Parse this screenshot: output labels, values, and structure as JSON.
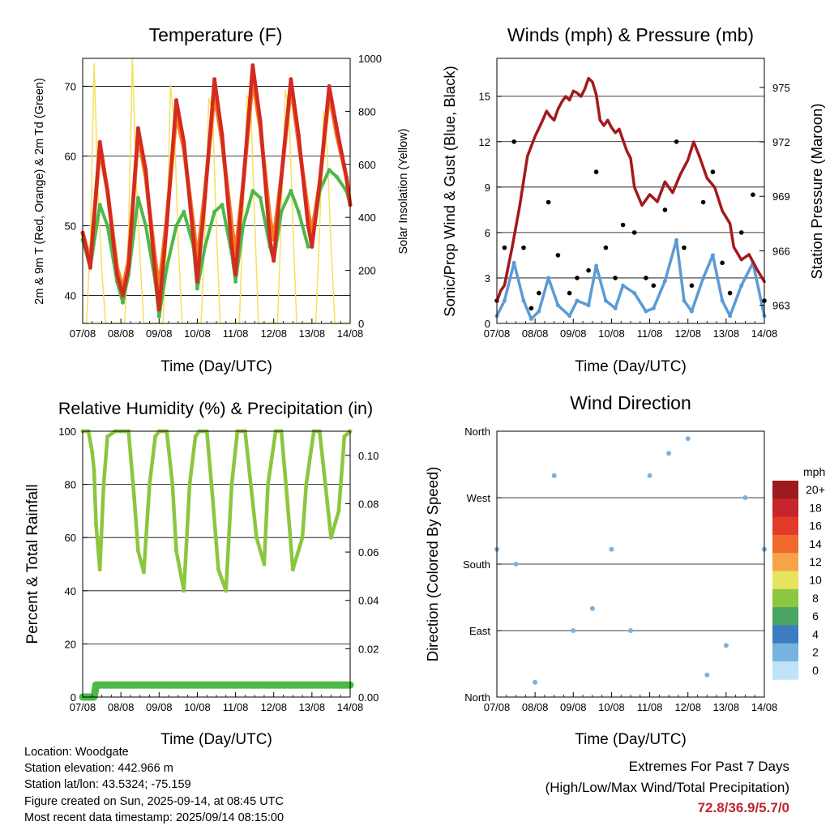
{
  "panels": {
    "temperature": {
      "title": "Temperature (F)",
      "xlabel": "Time (Day/UTC)",
      "ylabel_left": "2m & 9m T (Red, Orange) & 2m Td (Green)",
      "ylabel_right": "Solar Insolation (Yellow)"
    },
    "wind": {
      "title": "Winds (mph) & Pressure (mb)",
      "xlabel": "Time (Day/UTC)",
      "ylabel_left": "Sonic/Prop Wind & Gust (Blue, Black)",
      "ylabel_right": "Station Pressure (Maroon)"
    },
    "humidity": {
      "title": "Relative Humidity (%) & Precipitation (in)",
      "xlabel": "Time (Day/UTC)",
      "ylabel_left": "Percent & Total Rainfall"
    },
    "direction": {
      "title": "Wind Direction",
      "xlabel": "Time (Day/UTC)",
      "ylabel_left": "Direction (Colored By Speed)",
      "legend_unit": "mph"
    }
  },
  "info": {
    "location": "Location: Woodgate",
    "elevation": "Station elevation: 442.966 m",
    "latlon": "Station lat/lon: 43.5324; -75.159",
    "created": "Figure created on Sun, 2025-09-14, at 08:45 UTC",
    "recent": "Most recent data timestamp: 2025/09/14 08:15:00"
  },
  "extremes": {
    "line1": "Extremes For Past 7 Days",
    "line2": "(High/Low/Max Wind/Total Precipitation)",
    "values": "72.8/36.9/5.7/0"
  },
  "colors": {
    "temp_2m": "#d42a20",
    "temp_9m": "#f47b20",
    "dewpoint": "#4db848",
    "insolation": "#f6e05a",
    "wind_sonic": "#5b9bd5",
    "gust": "#000000",
    "pressure": "#a3191c",
    "humidity": "#8cc63f",
    "precip": "#4db848",
    "extremes": "#c0272d"
  },
  "chart_data": [
    {
      "id": "temperature",
      "type": "line",
      "title": "Temperature (F)",
      "xlabel": "Time (Day/UTC)",
      "ylabel": "2m & 9m T (Red, Orange) & 2m Td (Green)",
      "ylabel_right": "Solar Insolation (Yellow)",
      "x_ticks": [
        "07/08",
        "08/08",
        "09/08",
        "10/08",
        "11/08",
        "12/08",
        "13/08",
        "14/08"
      ],
      "xlim": [
        0,
        7
      ],
      "ylim": [
        36,
        74
      ],
      "y_ticks": [
        40,
        50,
        60,
        70
      ],
      "y2lim": [
        0,
        1000
      ],
      "y2_ticks": [
        0,
        200,
        400,
        600,
        800,
        1000
      ],
      "grid": "horizontal",
      "series": [
        {
          "name": "2m T",
          "axis": "left",
          "x": [
            0,
            0.2,
            0.45,
            0.65,
            0.9,
            1.05,
            1.2,
            1.45,
            1.65,
            1.9,
            2.0,
            2.2,
            2.45,
            2.65,
            2.9,
            3.0,
            3.2,
            3.45,
            3.65,
            3.9,
            4.0,
            4.2,
            4.45,
            4.65,
            4.9,
            5.0,
            5.2,
            5.45,
            5.65,
            5.9,
            6.0,
            6.2,
            6.45,
            6.65,
            6.9,
            7.0
          ],
          "values": [
            49,
            44,
            62,
            55,
            43,
            40,
            44,
            64,
            58,
            43,
            38,
            50,
            68,
            62,
            48,
            42,
            54,
            71,
            63,
            47,
            43,
            56,
            73,
            65,
            48,
            45,
            57,
            71,
            63,
            50,
            47,
            56,
            70,
            64,
            57,
            53
          ]
        },
        {
          "name": "9m T",
          "axis": "left",
          "x": [
            0,
            0.2,
            0.45,
            0.65,
            0.9,
            1.05,
            1.2,
            1.45,
            1.65,
            1.9,
            2.0,
            2.2,
            2.45,
            2.65,
            2.9,
            3.0,
            3.2,
            3.45,
            3.65,
            3.9,
            4.0,
            4.2,
            4.45,
            4.65,
            4.9,
            5.0,
            5.2,
            5.45,
            5.65,
            5.9,
            6.0,
            6.2,
            6.45,
            6.65,
            6.9,
            7.0
          ],
          "values": [
            49,
            45,
            61,
            55,
            44,
            41,
            45,
            63,
            57,
            45,
            41,
            51,
            66,
            61,
            50,
            45,
            55,
            69,
            62,
            50,
            46,
            56,
            71,
            64,
            51,
            48,
            57,
            70,
            62,
            52,
            49,
            56,
            69,
            63,
            57,
            53
          ]
        },
        {
          "name": "2m Td",
          "axis": "left",
          "x": [
            0,
            0.2,
            0.45,
            0.65,
            0.9,
            1.05,
            1.2,
            1.45,
            1.65,
            1.9,
            2.0,
            2.2,
            2.45,
            2.65,
            2.9,
            3.0,
            3.2,
            3.45,
            3.65,
            3.9,
            4.0,
            4.2,
            4.45,
            4.65,
            4.9,
            5.0,
            5.2,
            5.45,
            5.65,
            5.9,
            6.0,
            6.2,
            6.45,
            6.65,
            6.9,
            7.0
          ],
          "values": [
            48,
            44,
            53,
            50,
            42,
            39,
            43,
            54,
            50,
            42,
            37,
            44,
            50,
            52,
            47,
            41,
            47,
            52,
            53,
            46,
            42,
            50,
            55,
            54,
            47,
            45,
            52,
            55,
            52,
            47,
            47,
            55,
            58,
            57,
            55,
            53
          ]
        },
        {
          "name": "Solar Insolation",
          "axis": "right",
          "x": [
            0,
            0.1,
            0.2,
            0.3,
            0.4,
            0.5,
            0.6,
            0.8,
            1.0,
            1.1,
            1.2,
            1.3,
            1.4,
            1.5,
            1.6,
            1.8,
            2.0,
            2.1,
            2.2,
            2.3,
            2.4,
            2.5,
            2.6,
            2.8,
            3.0,
            3.1,
            3.2,
            3.3,
            3.4,
            3.5,
            3.6,
            3.8,
            4.0,
            4.1,
            4.2,
            4.3,
            4.4,
            4.5,
            4.6,
            4.8,
            5.0,
            5.1,
            5.2,
            5.3,
            5.4,
            5.5,
            5.6,
            5.8,
            6.0,
            6.1,
            6.2,
            6.3,
            6.4,
            6.5,
            6.6,
            6.8,
            7.0
          ],
          "values": [
            0,
            0,
            300,
            980,
            500,
            200,
            0,
            0,
            0,
            0,
            350,
            1000,
            550,
            250,
            0,
            0,
            0,
            0,
            300,
            900,
            750,
            300,
            0,
            0,
            0,
            0,
            350,
            850,
            800,
            350,
            0,
            0,
            0,
            0,
            400,
            860,
            820,
            400,
            0,
            0,
            0,
            0,
            400,
            880,
            800,
            380,
            0,
            0,
            0,
            0,
            350,
            800,
            650,
            300,
            0,
            0,
            0
          ]
        }
      ]
    },
    {
      "id": "wind",
      "type": "line",
      "title": "Winds (mph) & Pressure (mb)",
      "xlabel": "Time (Day/UTC)",
      "ylabel": "Sonic/Prop Wind & Gust (Blue, Black)",
      "ylabel_right": "Station Pressure (Maroon)",
      "x_ticks": [
        "07/08",
        "08/08",
        "09/08",
        "10/08",
        "11/08",
        "12/08",
        "13/08",
        "14/08"
      ],
      "xlim": [
        0,
        7
      ],
      "ylim": [
        0,
        17.5
      ],
      "y_ticks": [
        0,
        3,
        6,
        9,
        12,
        15
      ],
      "y2lim": [
        962.0,
        976.6
      ],
      "y2_ticks": [
        963,
        966,
        969,
        972,
        975
      ],
      "grid": "horizontal",
      "series": [
        {
          "name": "Sonic/Prop Wind",
          "axis": "left",
          "x": [
            0,
            0.2,
            0.45,
            0.7,
            0.9,
            1.1,
            1.35,
            1.6,
            1.9,
            2.1,
            2.4,
            2.6,
            2.85,
            3.1,
            3.3,
            3.6,
            3.9,
            4.1,
            4.4,
            4.7,
            4.9,
            5.1,
            5.4,
            5.65,
            5.9,
            6.1,
            6.4,
            6.7,
            7.0
          ],
          "values": [
            0.5,
            1.5,
            4.0,
            1.5,
            0.3,
            0.8,
            3.0,
            1.2,
            0.5,
            1.5,
            1.2,
            3.8,
            1.5,
            1.0,
            2.5,
            2.0,
            0.8,
            1.0,
            2.8,
            5.5,
            1.5,
            0.8,
            3.0,
            4.5,
            1.5,
            0.5,
            2.5,
            4.0,
            0.5
          ]
        },
        {
          "name": "Gust",
          "axis": "left",
          "x": [
            0,
            0.2,
            0.45,
            0.7,
            0.9,
            1.1,
            1.35,
            1.6,
            1.9,
            2.1,
            2.4,
            2.6,
            2.85,
            3.1,
            3.3,
            3.6,
            3.9,
            4.1,
            4.4,
            4.7,
            4.9,
            5.1,
            5.4,
            5.65,
            5.9,
            6.1,
            6.4,
            6.7,
            7.0
          ],
          "values": [
            1.5,
            5.0,
            12.0,
            5.0,
            1.0,
            2.0,
            8.0,
            4.5,
            2.0,
            3.0,
            3.5,
            10.0,
            5.0,
            3.0,
            6.5,
            6.0,
            3.0,
            2.5,
            7.5,
            12.0,
            5.0,
            2.5,
            8.0,
            10.0,
            4.0,
            2.0,
            6.0,
            8.5,
            1.5
          ]
        },
        {
          "name": "Station Pressure",
          "axis": "right",
          "x": [
            0,
            0.1,
            0.2,
            0.4,
            0.6,
            0.8,
            1.0,
            1.2,
            1.3,
            1.4,
            1.5,
            1.6,
            1.7,
            1.8,
            1.9,
            2.0,
            2.1,
            2.2,
            2.3,
            2.4,
            2.5,
            2.6,
            2.7,
            2.8,
            2.9,
            3.0,
            3.1,
            3.2,
            3.3,
            3.4,
            3.5,
            3.6,
            3.8,
            4.0,
            4.2,
            4.4,
            4.6,
            4.8,
            5.0,
            5.15,
            5.3,
            5.5,
            5.7,
            5.9,
            6.1,
            6.2,
            6.4,
            6.6,
            6.8,
            7.0
          ],
          "values": [
            963.2,
            963.8,
            964.1,
            966.2,
            968.5,
            971.2,
            972.3,
            973.2,
            973.7,
            973.4,
            973.2,
            973.8,
            974.2,
            974.5,
            974.3,
            974.8,
            974.7,
            974.5,
            974.9,
            975.5,
            975.3,
            974.6,
            973.2,
            972.9,
            973.2,
            972.8,
            972.5,
            972.7,
            972.1,
            971.5,
            971.1,
            969.5,
            968.5,
            969.1,
            968.7,
            969.8,
            969.2,
            970.2,
            971.0,
            972.0,
            971.2,
            970.0,
            969.5,
            968.2,
            967.5,
            966.2,
            965.5,
            965.8,
            965.0,
            964.3
          ]
        }
      ]
    },
    {
      "id": "humidity",
      "type": "line",
      "title": "Relative Humidity (%) & Precipitation (in)",
      "xlabel": "Time (Day/UTC)",
      "ylabel": "Percent & Total Rainfall",
      "x_ticks": [
        "07/08",
        "08/08",
        "09/08",
        "10/08",
        "11/08",
        "12/08",
        "13/08",
        "14/08"
      ],
      "xlim": [
        0,
        7
      ],
      "ylim": [
        0,
        100
      ],
      "y_ticks": [
        0,
        20,
        40,
        60,
        80,
        100
      ],
      "y2lim": [
        0,
        0.11
      ],
      "y2_ticks": [
        "0.00",
        "0.02",
        "0.04",
        "0.06",
        "0.08",
        "0.10"
      ],
      "grid": "horizontal",
      "series": [
        {
          "name": "Relative Humidity",
          "axis": "left",
          "x": [
            0,
            0.15,
            0.25,
            0.3,
            0.35,
            0.45,
            0.55,
            0.65,
            0.85,
            1.0,
            1.2,
            1.35,
            1.45,
            1.6,
            1.75,
            1.9,
            2.0,
            2.2,
            2.35,
            2.45,
            2.65,
            2.8,
            2.95,
            3.05,
            3.25,
            3.4,
            3.55,
            3.75,
            3.9,
            4.05,
            4.25,
            4.4,
            4.55,
            4.75,
            4.85,
            5.05,
            5.2,
            5.35,
            5.5,
            5.75,
            5.85,
            6.05,
            6.2,
            6.35,
            6.5,
            6.7,
            6.85,
            7.0
          ],
          "values": [
            100,
            100,
            92,
            85,
            65,
            48,
            80,
            98,
            100,
            100,
            100,
            75,
            55,
            47,
            80,
            98,
            100,
            100,
            80,
            55,
            40,
            80,
            98,
            100,
            100,
            75,
            48,
            40,
            80,
            100,
            100,
            80,
            60,
            50,
            80,
            100,
            100,
            75,
            48,
            60,
            80,
            100,
            100,
            80,
            60,
            70,
            98,
            100
          ]
        },
        {
          "name": "Total Precipitation",
          "axis": "right",
          "x": [
            0,
            0.3,
            0.35,
            7.0
          ],
          "values": [
            0,
            0,
            0.005,
            0.005
          ]
        }
      ]
    },
    {
      "id": "direction",
      "type": "scatter",
      "title": "Wind Direction",
      "xlabel": "Time (Day/UTC)",
      "ylabel": "Direction (Colored By Speed)",
      "x_ticks": [
        "07/08",
        "08/08",
        "09/08",
        "10/08",
        "11/08",
        "12/08",
        "13/08",
        "14/08"
      ],
      "xlim": [
        0,
        7
      ],
      "y_ticks": [
        "North",
        "East",
        "South",
        "West",
        "North"
      ],
      "ylim": [
        0,
        360
      ],
      "legend": {
        "title": "mph",
        "labels": [
          "20+",
          "18",
          "16",
          "14",
          "12",
          "10",
          "8",
          "6",
          "4",
          "2",
          "0"
        ],
        "colors": [
          "#9b1b1e",
          "#c8242b",
          "#e23a2b",
          "#ef6a2c",
          "#f6a34b",
          "#e6e35d",
          "#8dc63f",
          "#4aa564",
          "#3b7dc0",
          "#78b3e0",
          "#bfe3f7"
        ]
      },
      "series": [
        {
          "name": "Wind Direction",
          "x": [
            0,
            0.5,
            1.0,
            1.5,
            2.0,
            2.5,
            3.0,
            3.5,
            4.0,
            4.5,
            5.0,
            5.5,
            6.0,
            6.5,
            7.0
          ],
          "values": [
            200,
            180,
            20,
            300,
            90,
            120,
            200,
            90,
            300,
            330,
            350,
            30,
            70,
            270,
            200
          ]
        }
      ]
    }
  ]
}
